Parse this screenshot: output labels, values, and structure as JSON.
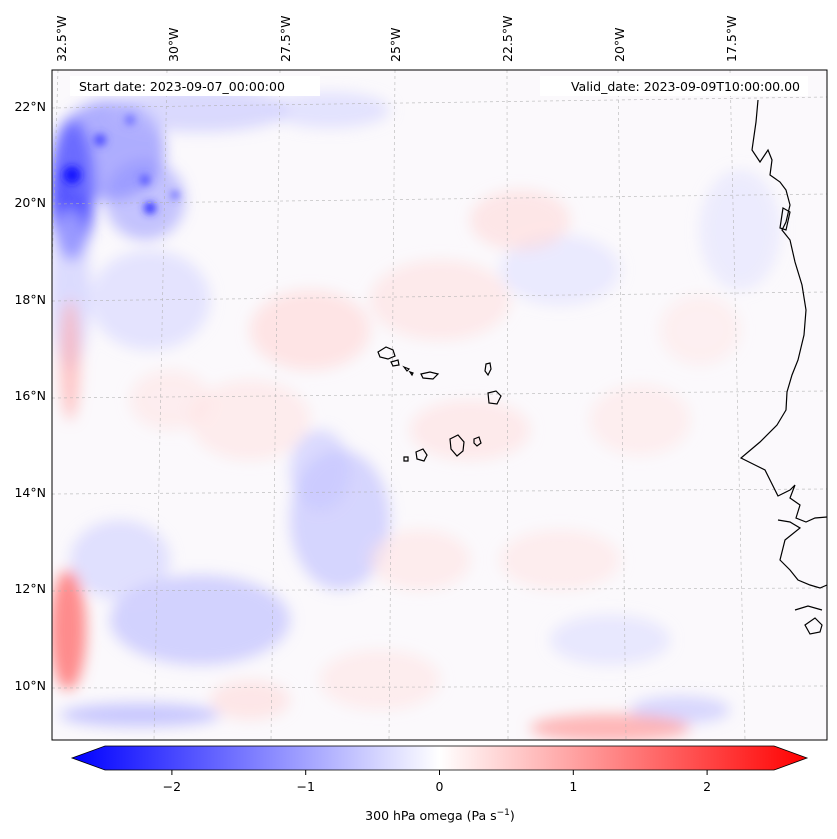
{
  "map": {
    "start_label": "Start date: 2023-09-07_00:00:00",
    "valid_label": "Valid_date: 2023-09-09T10:00:00.00",
    "lon_labels": [
      "32.5°W",
      "30°W",
      "27.5°W",
      "25°W",
      "22.5°W",
      "20°W",
      "17.5°W"
    ],
    "lat_labels": [
      "22°N",
      "20°N",
      "18°N",
      "16°N",
      "14°N",
      "12°N",
      "10°N"
    ],
    "field": "300 hPa omega",
    "units": "Pa s",
    "units_exponent": "−1"
  },
  "colorbar": {
    "ticks": [
      "−2",
      "−1",
      "0",
      "1",
      "2"
    ],
    "tick_values": [
      -2,
      -1,
      0,
      1,
      2
    ],
    "range": [
      -2.6,
      2.6
    ],
    "colors": {
      "low": "#0000ff",
      "mid": "#ffffff",
      "high": "#ff0000"
    }
  },
  "colors": {
    "coast": "#000000",
    "grid": "#b0b0b0"
  }
}
